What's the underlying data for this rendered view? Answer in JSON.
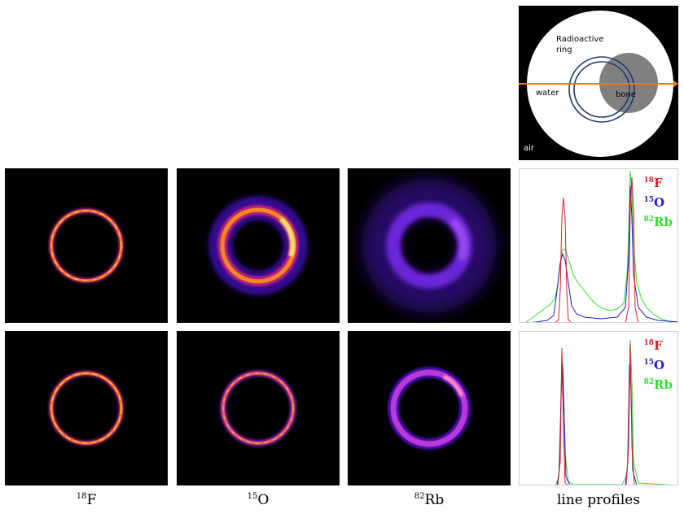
{
  "phantom": {
    "labels": {
      "ring": "Radioactive\nring",
      "water": "water",
      "bone": "bone",
      "air": "air"
    }
  },
  "columns": [
    {
      "mass": "18",
      "element": "F"
    },
    {
      "mass": "15",
      "element": "O"
    },
    {
      "mass": "82",
      "element": "Rb"
    }
  ],
  "profile_caption": "line profiles",
  "legend": [
    {
      "mass": "18",
      "element": "F",
      "color": "#e0202a"
    },
    {
      "mass": "15",
      "element": "O",
      "color": "#2020c8"
    },
    {
      "mass": "82",
      "element": "Rb",
      "color": "#30e030"
    }
  ],
  "colors": {
    "air": "#000000",
    "water": "#ffffff",
    "bone": "#808080",
    "ring": "#1e3a6e",
    "profile_line": "#e87a1c"
  }
}
